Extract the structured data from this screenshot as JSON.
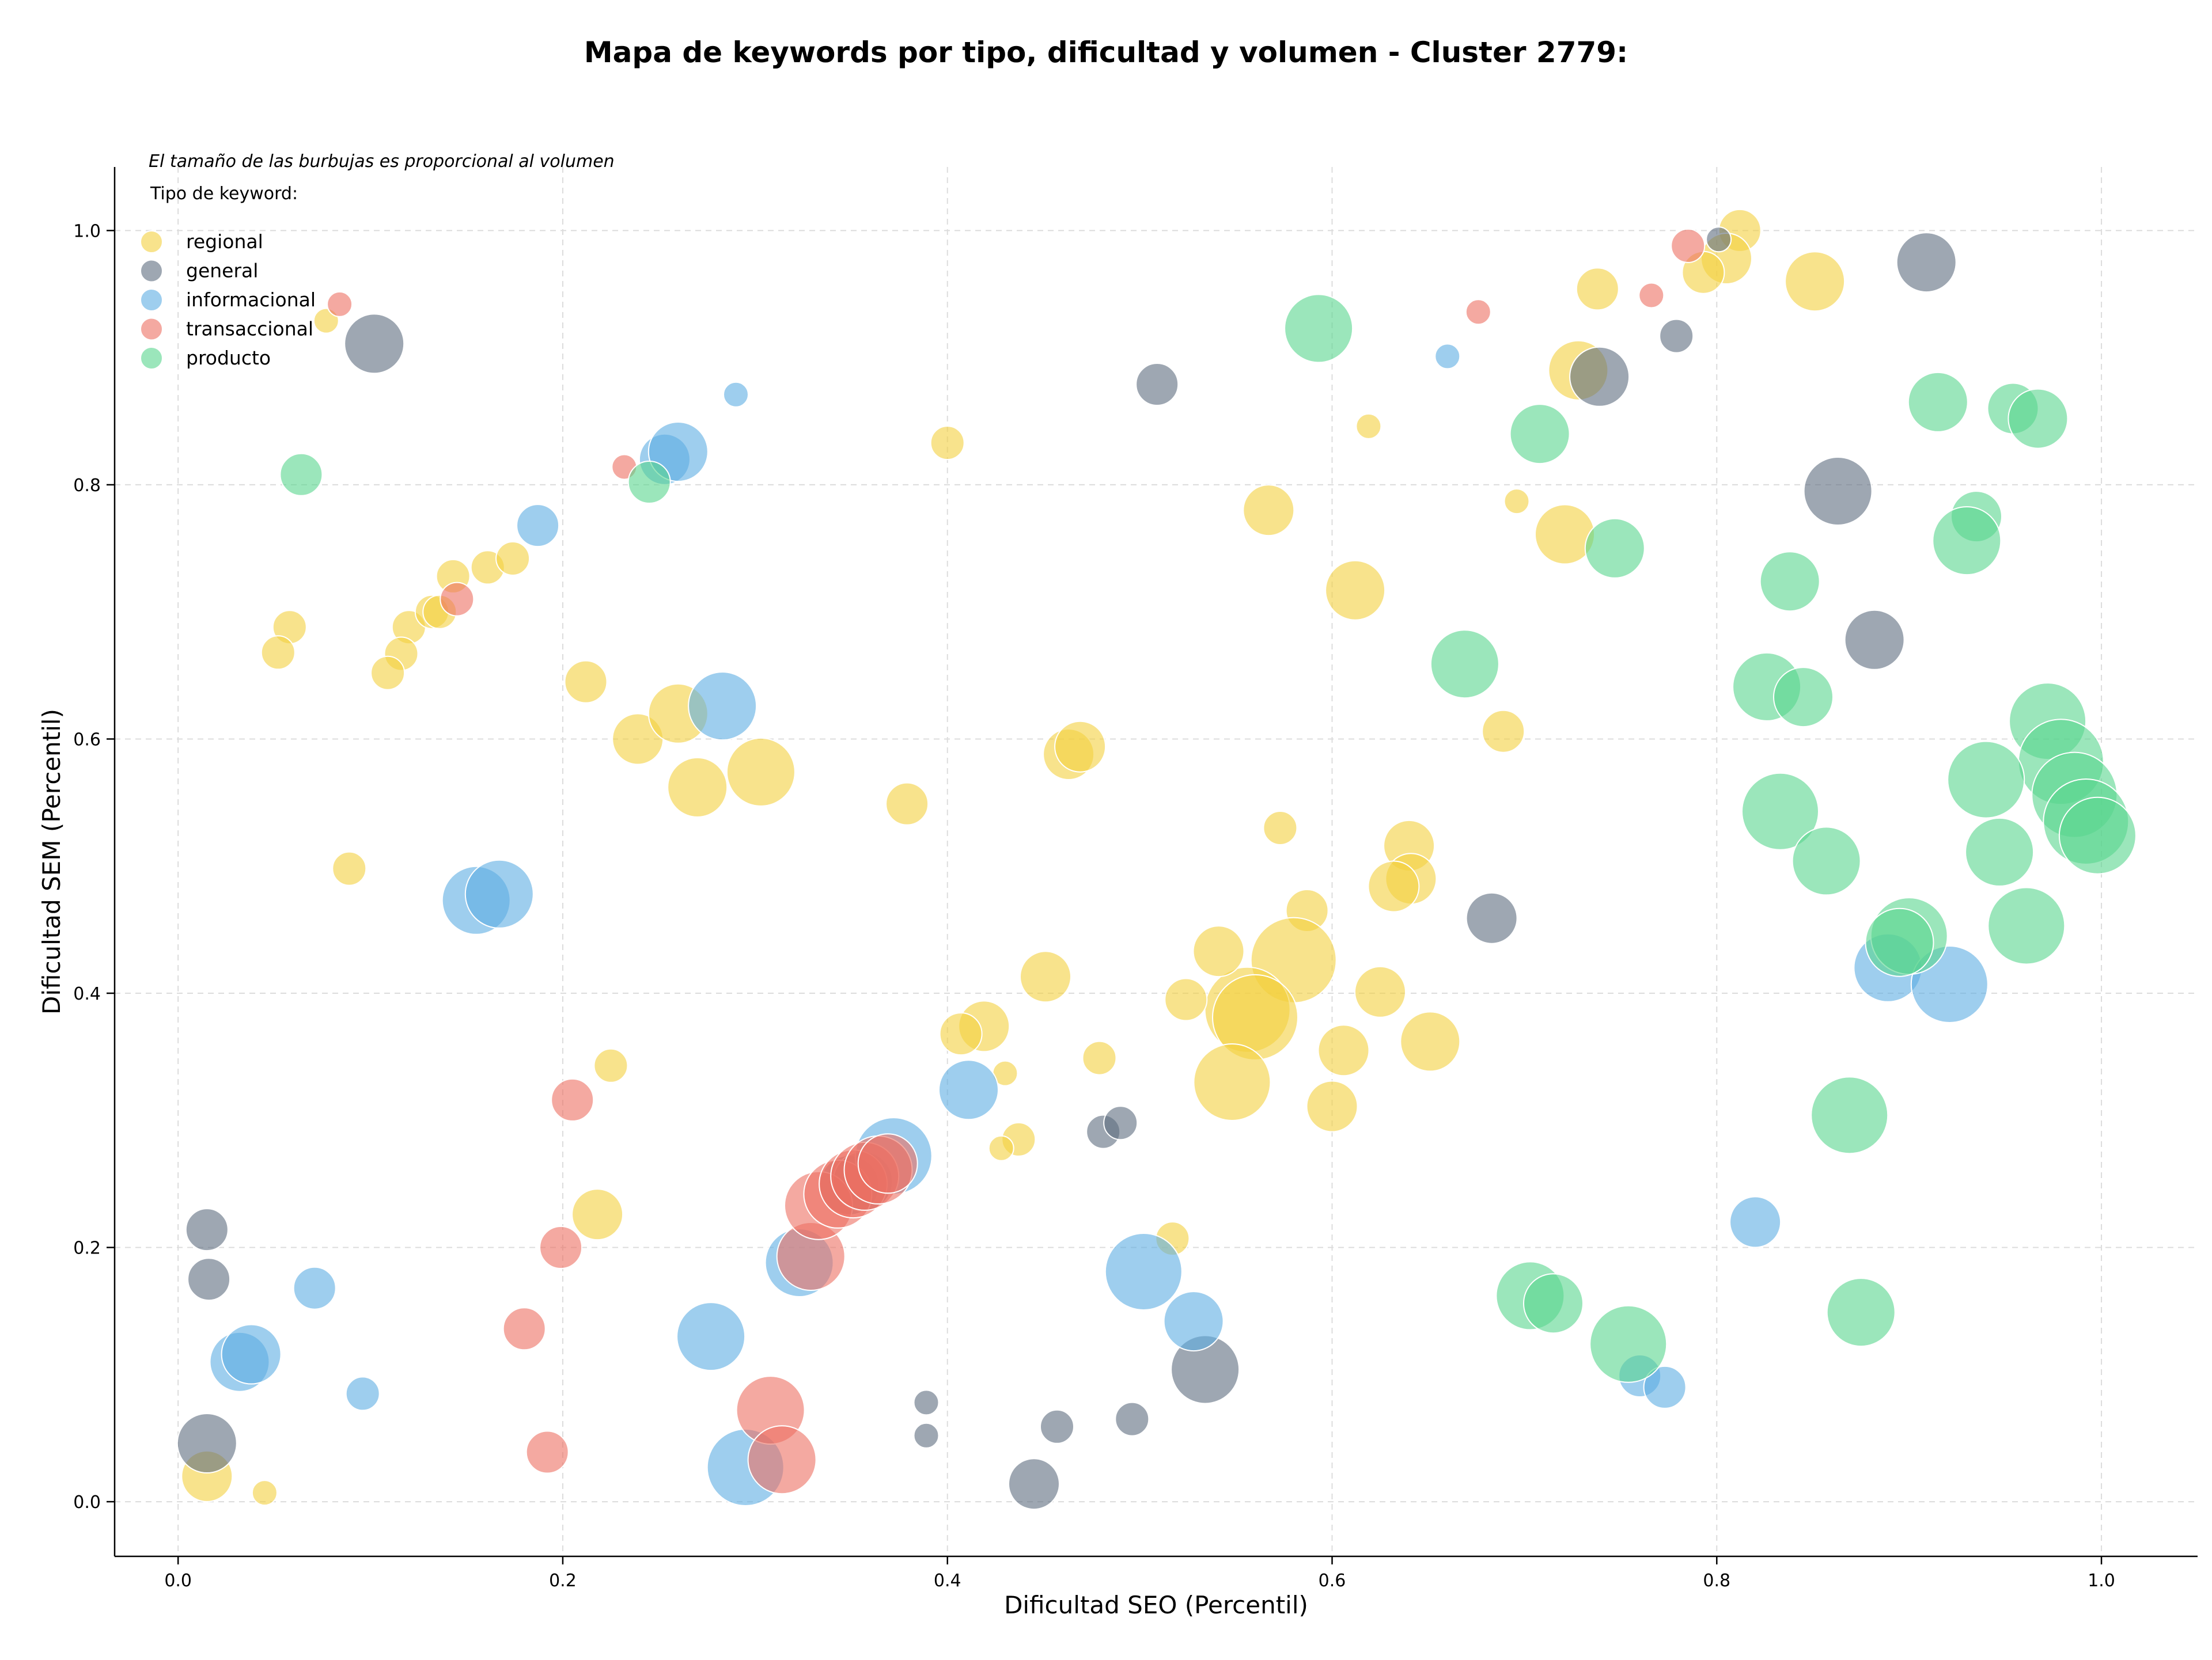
{
  "chart_data": {
    "type": "scatter",
    "title": "Mapa de keywords por tipo, dificultad y volumen - Cluster 2779:",
    "xlabel": "Dificultad SEO (Percentil)",
    "ylabel": "Dificultad SEM (Percentil)",
    "xlim": [
      -0.033,
      1.05
    ],
    "ylim": [
      -0.043,
      1.05
    ],
    "xticks": [
      "0.0",
      "0.2",
      "0.4",
      "0.6",
      "0.8",
      "1.0"
    ],
    "yticks": [
      "0.0",
      "0.2",
      "0.4",
      "0.6",
      "0.8",
      "1.0"
    ],
    "grid": true,
    "legend_position": "upper-left",
    "annotation": "El tamaño de las burbujas es proporcional al volumen",
    "legend_title": "Tipo de keyword:",
    "series": [
      {
        "name": "regional",
        "color": "#f4d03f",
        "points": [
          [
            0.812,
            1.0,
            3
          ],
          [
            0.805,
            0.978,
            4
          ],
          [
            0.793,
            0.967,
            3
          ],
          [
            0.851,
            0.96,
            5
          ],
          [
            0.738,
            0.954,
            3
          ],
          [
            0.728,
            0.89,
            5
          ],
          [
            0.619,
            0.846,
            1
          ],
          [
            0.4,
            0.833,
            2
          ],
          [
            0.567,
            0.78,
            4
          ],
          [
            0.696,
            0.787,
            1
          ],
          [
            0.721,
            0.761,
            5
          ],
          [
            0.612,
            0.717,
            5
          ],
          [
            0.143,
            0.728,
            2
          ],
          [
            0.161,
            0.735,
            2
          ],
          [
            0.174,
            0.742,
            2
          ],
          [
            0.058,
            0.688,
            2
          ],
          [
            0.052,
            0.668,
            2
          ],
          [
            0.12,
            0.688,
            2
          ],
          [
            0.132,
            0.7,
            2
          ],
          [
            0.136,
            0.7,
            2
          ],
          [
            0.116,
            0.667,
            2
          ],
          [
            0.109,
            0.652,
            2
          ],
          [
            0.212,
            0.645,
            3
          ],
          [
            0.239,
            0.6,
            4
          ],
          [
            0.26,
            0.62,
            5
          ],
          [
            0.27,
            0.562,
            5
          ],
          [
            0.303,
            0.574,
            6
          ],
          [
            0.379,
            0.549,
            3
          ],
          [
            0.463,
            0.588,
            4
          ],
          [
            0.469,
            0.594,
            4
          ],
          [
            0.689,
            0.606,
            3
          ],
          [
            0.573,
            0.53,
            2
          ],
          [
            0.64,
            0.516,
            4
          ],
          [
            0.641,
            0.49,
            4
          ],
          [
            0.632,
            0.484,
            4
          ],
          [
            0.587,
            0.465,
            3
          ],
          [
            0.58,
            0.426,
            8
          ],
          [
            0.556,
            0.387,
            8
          ],
          [
            0.56,
            0.381,
            8
          ],
          [
            0.541,
            0.433,
            4
          ],
          [
            0.524,
            0.395,
            3
          ],
          [
            0.548,
            0.33,
            7
          ],
          [
            0.451,
            0.413,
            4
          ],
          [
            0.419,
            0.374,
            4
          ],
          [
            0.407,
            0.368,
            3
          ],
          [
            0.43,
            0.337,
            1
          ],
          [
            0.479,
            0.349,
            2
          ],
          [
            0.625,
            0.401,
            4
          ],
          [
            0.606,
            0.355,
            4
          ],
          [
            0.651,
            0.362,
            5
          ],
          [
            0.6,
            0.311,
            4
          ],
          [
            0.437,
            0.285,
            2
          ],
          [
            0.428,
            0.278,
            1
          ],
          [
            0.517,
            0.207,
            2
          ],
          [
            0.218,
            0.226,
            4
          ],
          [
            0.225,
            0.343,
            2
          ],
          [
            0.089,
            0.498,
            2
          ],
          [
            0.077,
            0.929,
            1
          ],
          [
            0.015,
            0.02,
            4
          ],
          [
            0.045,
            0.007,
            1
          ]
        ]
      },
      {
        "name": "general",
        "color": "#5d6d7e",
        "points": [
          [
            0.801,
            0.993,
            1
          ],
          [
            0.909,
            0.975,
            5
          ],
          [
            0.779,
            0.917,
            2
          ],
          [
            0.739,
            0.885,
            5
          ],
          [
            0.509,
            0.879,
            3
          ],
          [
            0.863,
            0.795,
            6
          ],
          [
            0.882,
            0.678,
            5
          ],
          [
            0.683,
            0.459,
            4
          ],
          [
            0.102,
            0.911,
            5
          ],
          [
            0.481,
            0.291,
            2
          ],
          [
            0.49,
            0.298,
            2
          ],
          [
            0.015,
            0.214,
            3
          ],
          [
            0.016,
            0.175,
            3
          ],
          [
            0.015,
            0.046,
            5
          ],
          [
            0.389,
            0.078,
            1
          ],
          [
            0.389,
            0.052,
            1
          ],
          [
            0.457,
            0.059,
            2
          ],
          [
            0.496,
            0.065,
            2
          ],
          [
            0.534,
            0.104,
            6
          ],
          [
            0.445,
            0.014,
            4
          ],
          [
            0.349,
            0.249,
            5
          ],
          [
            0.356,
            0.252,
            5
          ]
        ]
      },
      {
        "name": "informacional",
        "color": "#5dade2",
        "points": [
          [
            0.66,
            0.901,
            1
          ],
          [
            0.29,
            0.871,
            1
          ],
          [
            0.253,
            0.82,
            4
          ],
          [
            0.26,
            0.826,
            5
          ],
          [
            0.187,
            0.768,
            3
          ],
          [
            0.283,
            0.626,
            6
          ],
          [
            0.155,
            0.473,
            6
          ],
          [
            0.167,
            0.478,
            6
          ],
          [
            0.411,
            0.324,
            5
          ],
          [
            0.372,
            0.272,
            7
          ],
          [
            0.323,
            0.188,
            6
          ],
          [
            0.889,
            0.42,
            6
          ],
          [
            0.921,
            0.407,
            7
          ],
          [
            0.82,
            0.22,
            4
          ],
          [
            0.502,
            0.181,
            7
          ],
          [
            0.528,
            0.142,
            5
          ],
          [
            0.277,
            0.13,
            6
          ],
          [
            0.071,
            0.168,
            3
          ],
          [
            0.032,
            0.11,
            5
          ],
          [
            0.038,
            0.116,
            5
          ],
          [
            0.096,
            0.085,
            2
          ],
          [
            0.295,
            0.027,
            7
          ],
          [
            0.76,
            0.099,
            3
          ],
          [
            0.773,
            0.09,
            3
          ]
        ]
      },
      {
        "name": "transaccional",
        "color": "#ec7063",
        "points": [
          [
            0.785,
            0.988,
            2
          ],
          [
            0.676,
            0.936,
            1
          ],
          [
            0.766,
            0.949,
            1
          ],
          [
            0.084,
            0.942,
            1
          ],
          [
            0.232,
            0.814,
            1
          ],
          [
            0.145,
            0.71,
            2
          ],
          [
            0.205,
            0.316,
            3
          ],
          [
            0.199,
            0.2,
            3
          ],
          [
            0.18,
            0.136,
            3
          ],
          [
            0.192,
            0.039,
            3
          ],
          [
            0.308,
            0.072,
            6
          ],
          [
            0.314,
            0.033,
            6
          ],
          [
            0.329,
            0.193,
            6
          ],
          [
            0.333,
            0.233,
            6
          ],
          [
            0.343,
            0.242,
            6
          ],
          [
            0.351,
            0.25,
            6
          ],
          [
            0.357,
            0.256,
            6
          ],
          [
            0.364,
            0.261,
            6
          ],
          [
            0.369,
            0.266,
            5
          ]
        ]
      },
      {
        "name": "producto",
        "color": "#58d68d",
        "points": [
          [
            0.593,
            0.923,
            6
          ],
          [
            0.915,
            0.865,
            5
          ],
          [
            0.954,
            0.86,
            4
          ],
          [
            0.967,
            0.852,
            5
          ],
          [
            0.708,
            0.84,
            5
          ],
          [
            0.064,
            0.808,
            3
          ],
          [
            0.245,
            0.802,
            3
          ],
          [
            0.935,
            0.775,
            4
          ],
          [
            0.93,
            0.756,
            6
          ],
          [
            0.747,
            0.75,
            5
          ],
          [
            0.838,
            0.724,
            5
          ],
          [
            0.669,
            0.659,
            6
          ],
          [
            0.826,
            0.641,
            6
          ],
          [
            0.845,
            0.633,
            5
          ],
          [
            0.972,
            0.614,
            7
          ],
          [
            0.979,
            0.582,
            8
          ],
          [
            0.986,
            0.556,
            8
          ],
          [
            0.992,
            0.535,
            8
          ],
          [
            0.998,
            0.524,
            7
          ],
          [
            0.94,
            0.568,
            7
          ],
          [
            0.947,
            0.511,
            6
          ],
          [
            0.833,
            0.543,
            7
          ],
          [
            0.857,
            0.504,
            6
          ],
          [
            0.961,
            0.453,
            7
          ],
          [
            0.9,
            0.445,
            7
          ],
          [
            0.895,
            0.44,
            6
          ],
          [
            0.869,
            0.304,
            7
          ],
          [
            0.875,
            0.149,
            6
          ],
          [
            0.703,
            0.162,
            6
          ],
          [
            0.715,
            0.156,
            5
          ],
          [
            0.754,
            0.124,
            7
          ]
        ]
      }
    ]
  }
}
